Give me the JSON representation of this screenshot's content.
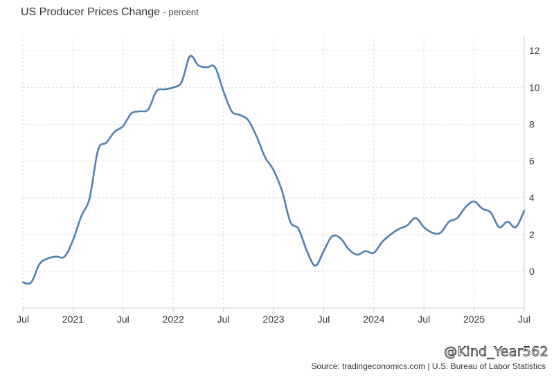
{
  "title": "US Producer Prices Change",
  "title_suffix": "- percent",
  "watermark": "@Kind_Year562",
  "source": "Source: tradingeconomics.com | U.S. Bureau of Labor Statistics",
  "colors": {
    "line": "#4f7fb3",
    "grid": "#dddddd",
    "axis": "#cccccc",
    "text": "#333333"
  },
  "chart_data": {
    "type": "line",
    "title": "US Producer Prices Change",
    "subtitle": "- percent",
    "xlabel": "",
    "ylabel": "",
    "ylim": [
      -2,
      12.8
    ],
    "yticks": [
      0,
      2,
      4,
      6,
      8,
      10,
      12
    ],
    "grid": true,
    "x_ticks": [
      {
        "label": "Jul",
        "x": "2020-07"
      },
      {
        "label": "2021",
        "x": "2021-01"
      },
      {
        "label": "Jul",
        "x": "2021-07"
      },
      {
        "label": "2022",
        "x": "2022-01"
      },
      {
        "label": "Jul",
        "x": "2022-07"
      },
      {
        "label": "2023",
        "x": "2023-01"
      },
      {
        "label": "Jul",
        "x": "2023-07"
      },
      {
        "label": "2024",
        "x": "2024-01"
      },
      {
        "label": "Jul",
        "x": "2024-07"
      },
      {
        "label": "2025",
        "x": "2025-01"
      },
      {
        "label": "Jul",
        "x": "2025-07"
      }
    ],
    "series": [
      {
        "x": [
          "2020-07",
          "2020-08",
          "2020-09",
          "2020-10",
          "2020-11",
          "2020-12",
          "2021-01",
          "2021-02",
          "2021-03",
          "2021-04",
          "2021-05",
          "2021-06",
          "2021-07",
          "2021-08",
          "2021-09",
          "2021-10",
          "2021-11",
          "2021-12",
          "2022-01",
          "2022-02",
          "2022-03",
          "2022-04",
          "2022-05",
          "2022-06",
          "2022-07",
          "2022-08",
          "2022-09",
          "2022-10",
          "2022-11",
          "2022-12",
          "2023-01",
          "2023-02",
          "2023-03",
          "2023-04",
          "2023-05",
          "2023-06",
          "2023-07",
          "2023-08",
          "2023-09",
          "2023-10",
          "2023-11",
          "2023-12",
          "2024-01",
          "2024-02",
          "2024-03",
          "2024-04",
          "2024-05",
          "2024-06",
          "2024-07",
          "2024-08",
          "2024-09",
          "2024-10",
          "2024-11",
          "2024-12",
          "2025-01",
          "2025-02",
          "2025-03",
          "2025-04",
          "2025-05",
          "2025-06",
          "2025-07"
        ],
        "values": [
          -0.6,
          -0.6,
          0.4,
          0.7,
          0.8,
          0.8,
          1.7,
          3.0,
          4.0,
          6.6,
          7.0,
          7.6,
          7.9,
          8.6,
          8.7,
          8.8,
          9.8,
          9.9,
          10.0,
          10.3,
          11.7,
          11.2,
          11.1,
          11.1,
          9.8,
          8.7,
          8.5,
          8.2,
          7.3,
          6.2,
          5.5,
          4.4,
          2.7,
          2.3,
          1.1,
          0.3,
          1.1,
          1.9,
          1.8,
          1.2,
          0.9,
          1.1,
          1.0,
          1.6,
          2.0,
          2.3,
          2.5,
          2.9,
          2.4,
          2.1,
          2.1,
          2.7,
          2.9,
          3.5,
          3.8,
          3.4,
          3.2,
          2.4,
          2.7,
          2.4,
          3.3
        ]
      }
    ]
  }
}
